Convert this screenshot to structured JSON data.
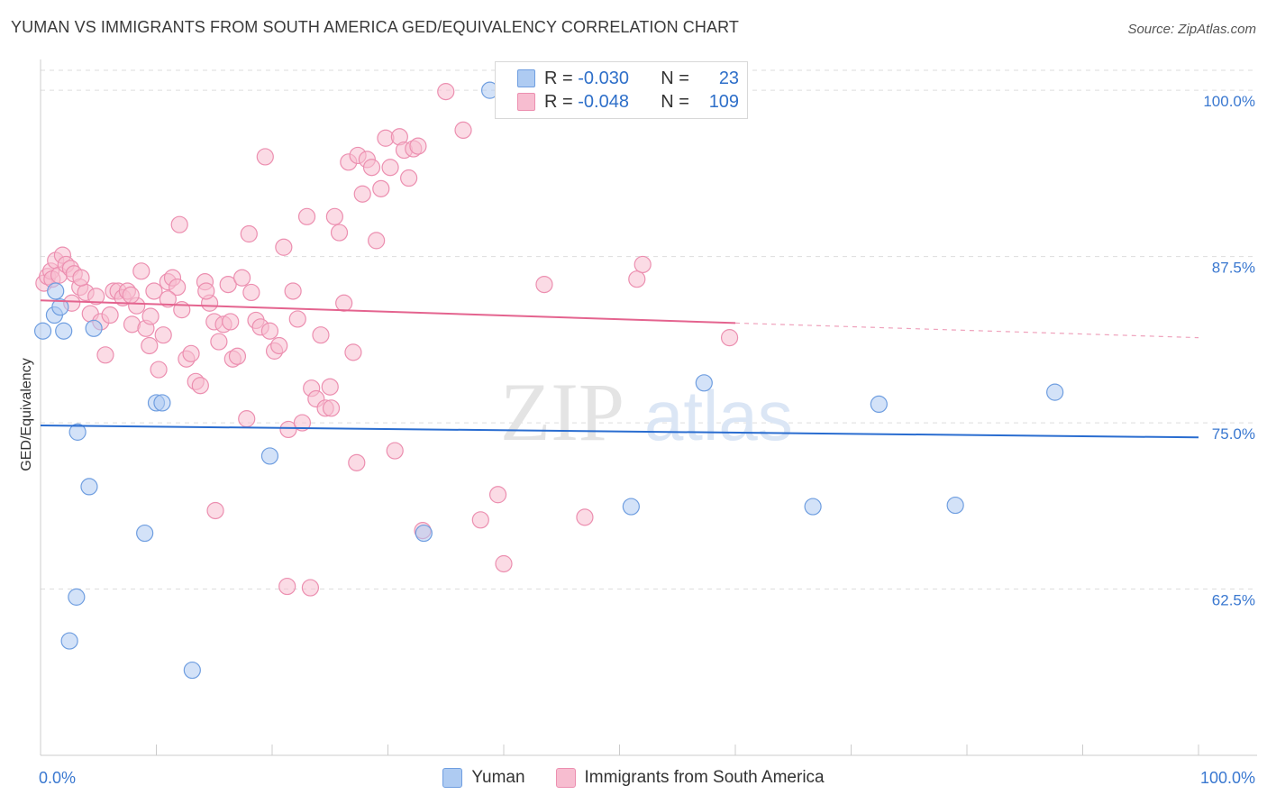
{
  "title": "YUMAN VS IMMIGRANTS FROM SOUTH AMERICA GED/EQUIVALENCY CORRELATION CHART",
  "source": "Source: ZipAtlas.com",
  "watermark": {
    "zip": "ZIP",
    "atlas": "atlas"
  },
  "colors": {
    "yuman_fill": "#aecbf2",
    "yuman_stroke": "#6f9ee0",
    "yuman_line": "#2a6dd0",
    "imm_fill": "#f7bdd0",
    "imm_stroke": "#ec8fb0",
    "imm_line": "#e4648f",
    "axis_label": "#3a78d0",
    "grid": "#dddddd"
  },
  "legend": {
    "yuman": {
      "r_label": "R =",
      "r_value": "-0.030",
      "n_label": "N =",
      "n_value": "23"
    },
    "imm": {
      "r_label": "R =",
      "r_value": "-0.048",
      "n_label": "N =",
      "n_value": "109"
    }
  },
  "bottom_legend": {
    "yuman": "Yuman",
    "imm": "Immigrants from South America"
  },
  "chart_data": {
    "type": "scatter",
    "xlabel": "",
    "ylabel": "GED/Equivalency",
    "xlim": [
      0,
      100
    ],
    "ylim": [
      50,
      101.5
    ],
    "x_tick_labels": {
      "left": "0.0%",
      "right": "100.0%"
    },
    "y_ticks": [
      {
        "value": 100,
        "label": "100.0%"
      },
      {
        "value": 87.5,
        "label": "87.5%"
      },
      {
        "value": 75,
        "label": "75.0%"
      },
      {
        "value": 62.5,
        "label": "62.5%"
      }
    ],
    "series": [
      {
        "name": "Yuman",
        "trend": {
          "x0": 0,
          "y0": 74.8,
          "x1": 100,
          "y1": 73.9,
          "dash_from": null
        },
        "points": [
          [
            0.2,
            81.9
          ],
          [
            1.2,
            83.1
          ],
          [
            1.3,
            84.9
          ],
          [
            1.7,
            83.7
          ],
          [
            2.0,
            81.9
          ],
          [
            3.2,
            74.3
          ],
          [
            4.2,
            70.2
          ],
          [
            4.6,
            82.1
          ],
          [
            3.1,
            61.9
          ],
          [
            2.5,
            58.6
          ],
          [
            9.0,
            66.7
          ],
          [
            10.0,
            76.5
          ],
          [
            10.5,
            76.5
          ],
          [
            13.1,
            56.4
          ],
          [
            19.8,
            72.5
          ],
          [
            33.1,
            66.7
          ],
          [
            38.8,
            100.0
          ],
          [
            51.0,
            68.7
          ],
          [
            57.3,
            78.0
          ],
          [
            66.7,
            68.7
          ],
          [
            72.4,
            76.4
          ],
          [
            79.0,
            68.8
          ],
          [
            87.6,
            77.3
          ]
        ]
      },
      {
        "name": "Immigrants from South America",
        "trend": {
          "x0": 0,
          "y0": 84.2,
          "x1": 60,
          "y1": 82.5,
          "dash_to": 100,
          "dash_y": 81.4
        },
        "points": [
          [
            0.3,
            85.5
          ],
          [
            0.6,
            86.0
          ],
          [
            0.9,
            86.4
          ],
          [
            1.0,
            85.8
          ],
          [
            1.3,
            87.2
          ],
          [
            1.6,
            86.1
          ],
          [
            1.9,
            87.6
          ],
          [
            2.2,
            86.9
          ],
          [
            2.6,
            86.6
          ],
          [
            2.9,
            86.2
          ],
          [
            3.4,
            85.2
          ],
          [
            3.9,
            84.8
          ],
          [
            4.3,
            83.2
          ],
          [
            4.8,
            84.5
          ],
          [
            5.2,
            82.6
          ],
          [
            5.6,
            80.1
          ],
          [
            6.0,
            83.1
          ],
          [
            6.3,
            84.9
          ],
          [
            6.7,
            84.9
          ],
          [
            7.1,
            84.4
          ],
          [
            7.5,
            84.9
          ],
          [
            7.9,
            82.4
          ],
          [
            8.3,
            83.8
          ],
          [
            8.7,
            86.4
          ],
          [
            9.1,
            82.1
          ],
          [
            9.4,
            80.8
          ],
          [
            9.8,
            84.9
          ],
          [
            10.2,
            79.0
          ],
          [
            10.6,
            81.6
          ],
          [
            11.0,
            85.6
          ],
          [
            11.4,
            85.9
          ],
          [
            11.8,
            85.2
          ],
          [
            12.2,
            83.5
          ],
          [
            12.6,
            79.8
          ],
          [
            13.0,
            80.2
          ],
          [
            13.4,
            78.1
          ],
          [
            13.8,
            77.8
          ],
          [
            14.2,
            85.6
          ],
          [
            14.6,
            84.0
          ],
          [
            15.0,
            82.6
          ],
          [
            15.4,
            81.1
          ],
          [
            15.8,
            82.4
          ],
          [
            16.2,
            85.4
          ],
          [
            16.6,
            79.8
          ],
          [
            17.0,
            80.0
          ],
          [
            17.4,
            85.9
          ],
          [
            17.8,
            75.3
          ],
          [
            18.2,
            84.8
          ],
          [
            18.6,
            82.7
          ],
          [
            19.0,
            82.2
          ],
          [
            19.4,
            95.0
          ],
          [
            19.8,
            81.9
          ],
          [
            20.2,
            80.4
          ],
          [
            20.6,
            80.8
          ],
          [
            21.0,
            88.2
          ],
          [
            21.4,
            74.5
          ],
          [
            21.8,
            84.9
          ],
          [
            22.2,
            82.8
          ],
          [
            22.6,
            75.0
          ],
          [
            23.0,
            90.5
          ],
          [
            23.4,
            77.6
          ],
          [
            23.8,
            76.8
          ],
          [
            24.2,
            81.6
          ],
          [
            24.6,
            76.1
          ],
          [
            25.0,
            77.7
          ],
          [
            25.4,
            90.5
          ],
          [
            25.8,
            89.3
          ],
          [
            26.2,
            84.0
          ],
          [
            26.6,
            94.6
          ],
          [
            27.0,
            80.3
          ],
          [
            27.4,
            95.1
          ],
          [
            27.8,
            92.2
          ],
          [
            28.2,
            94.8
          ],
          [
            28.6,
            94.2
          ],
          [
            29.0,
            88.7
          ],
          [
            29.4,
            92.6
          ],
          [
            29.8,
            96.4
          ],
          [
            30.2,
            94.2
          ],
          [
            30.6,
            72.9
          ],
          [
            31.0,
            96.5
          ],
          [
            31.4,
            95.5
          ],
          [
            31.8,
            93.4
          ],
          [
            32.2,
            95.6
          ],
          [
            32.6,
            95.8
          ],
          [
            33.0,
            66.9
          ],
          [
            35.0,
            99.9
          ],
          [
            36.5,
            97.0
          ],
          [
            38.0,
            67.7
          ],
          [
            39.5,
            69.6
          ],
          [
            40.0,
            64.4
          ],
          [
            43.5,
            85.4
          ],
          [
            47.0,
            67.9
          ],
          [
            51.5,
            85.8
          ],
          [
            52.0,
            86.9
          ],
          [
            59.5,
            81.4
          ],
          [
            12.0,
            89.9
          ],
          [
            7.8,
            84.6
          ],
          [
            9.5,
            83.0
          ],
          [
            15.1,
            68.4
          ],
          [
            18.0,
            89.2
          ],
          [
            21.3,
            62.7
          ],
          [
            23.3,
            62.6
          ],
          [
            14.3,
            84.9
          ],
          [
            27.3,
            72.0
          ],
          [
            11.0,
            84.3
          ],
          [
            25.1,
            76.1
          ],
          [
            3.5,
            85.9
          ],
          [
            2.7,
            84.0
          ],
          [
            16.4,
            82.6
          ]
        ]
      }
    ]
  }
}
